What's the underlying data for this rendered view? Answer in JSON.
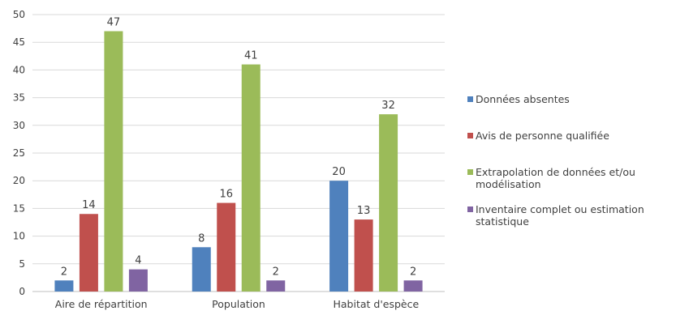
{
  "chart_data": {
    "type": "bar",
    "title": "",
    "xlabel": "",
    "ylabel": "",
    "categories": [
      "Aire de répartition",
      "Population",
      "Habitat d'espèce"
    ],
    "ylim": [
      0,
      50
    ],
    "yticks": [
      0,
      5,
      10,
      15,
      20,
      25,
      30,
      35,
      40,
      45,
      50
    ],
    "grid": true,
    "legend_position": "right",
    "series": [
      {
        "name": "Données absentes",
        "color": "#4f81bd",
        "values": [
          2,
          8,
          20
        ]
      },
      {
        "name": "Avis de personne qualifiée",
        "color": "#c0504d",
        "values": [
          14,
          16,
          13
        ]
      },
      {
        "name": "Extrapolation de données et/ou modélisation",
        "color": "#9bbb59",
        "values": [
          47,
          41,
          32
        ]
      },
      {
        "name": "Inventaire complet ou estimation statistique",
        "color": "#8064a2",
        "values": [
          4,
          2,
          2
        ]
      }
    ]
  }
}
